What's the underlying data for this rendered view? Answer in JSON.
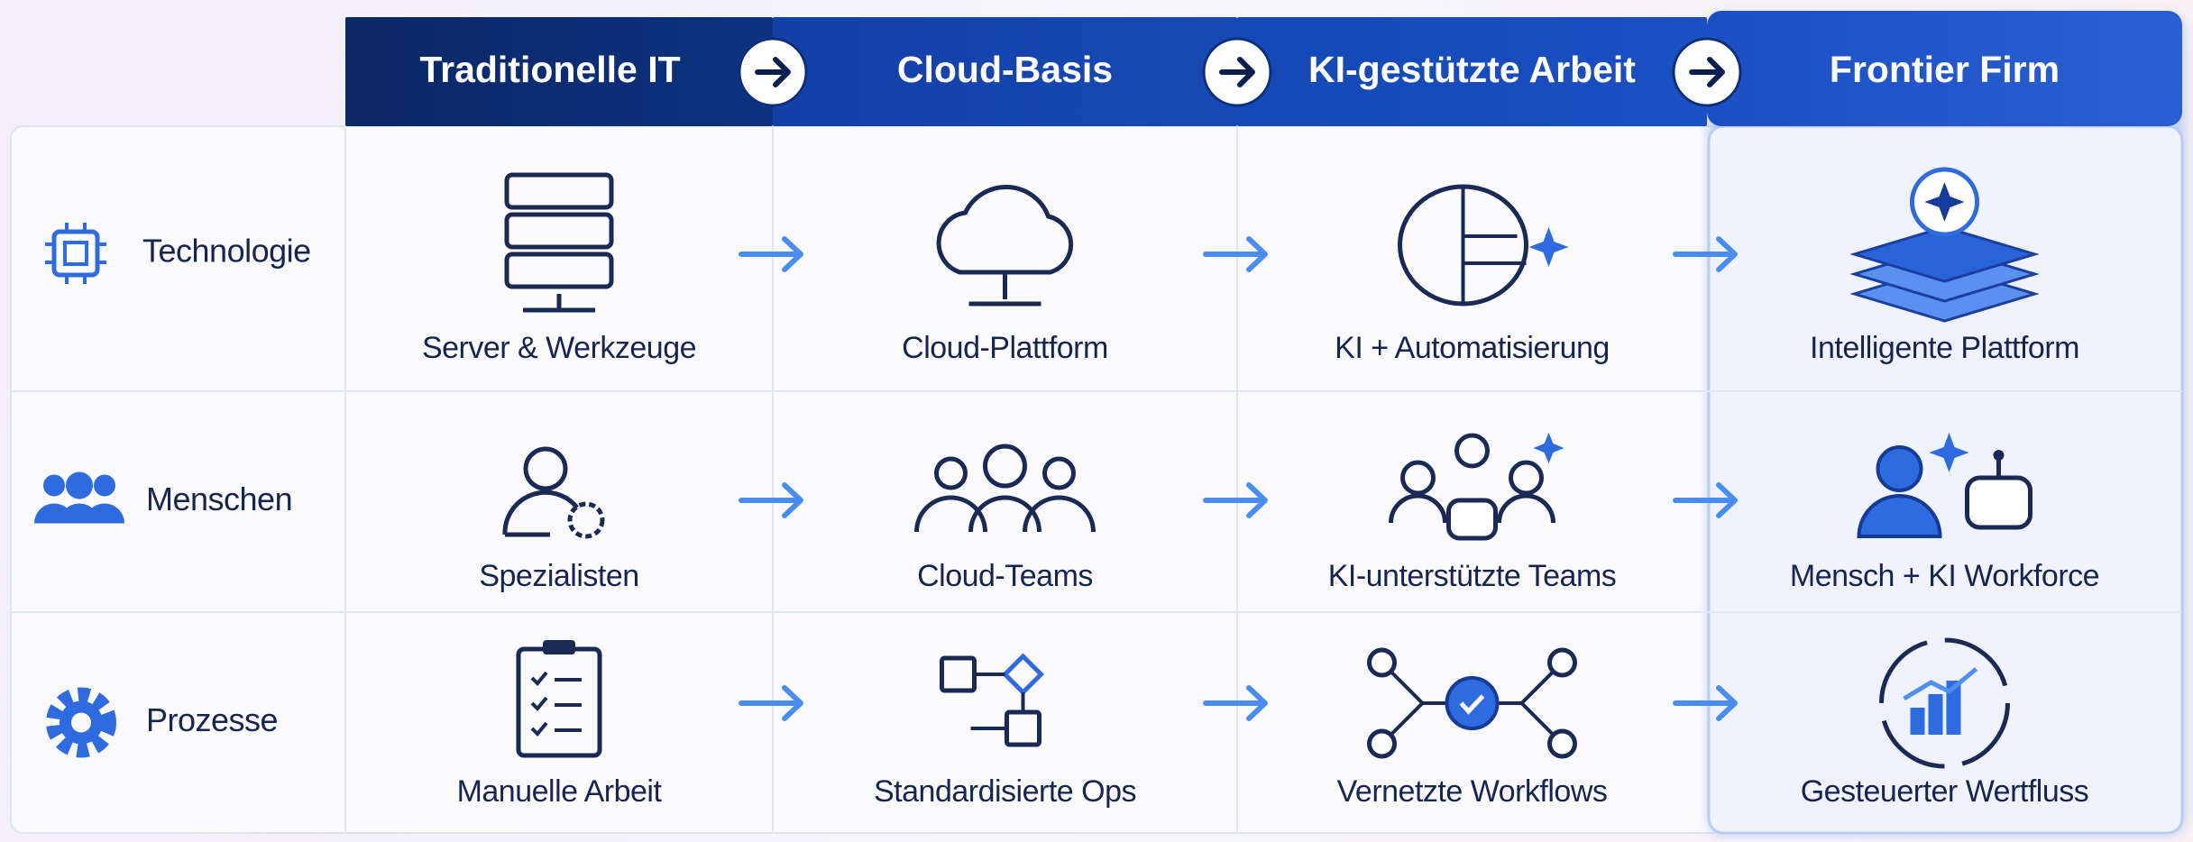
{
  "columns": [
    "Traditionelle IT",
    "Cloud-Basis",
    "KI-gestützte Arbeit",
    "Frontier Firm"
  ],
  "rows": [
    {
      "label": "Technologie",
      "cells": [
        "Server & Werkzeuge",
        "Cloud-Plattform",
        "KI + Automatisierung",
        "Intelligente Plattform"
      ]
    },
    {
      "label": "Menschen",
      "cells": [
        "Spezialisten",
        "Cloud-Teams",
        "KI-unterstützte Teams",
        "Mensch + KI Workforce"
      ]
    },
    {
      "label": "Prozesse",
      "cells": [
        "Manuelle Arbeit",
        "Standardisierte Ops",
        "Vernetzte Workflows",
        "Gesteuerter Wertfluss"
      ]
    }
  ]
}
